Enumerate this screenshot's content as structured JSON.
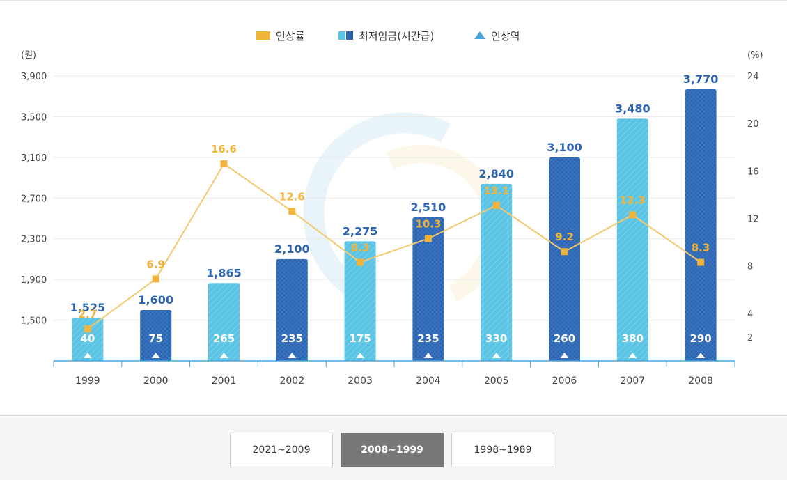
{
  "chart_data": {
    "type": "bar",
    "title": "",
    "legend": [
      {
        "name": "인상률",
        "marker": "square",
        "color": "#f0b43c"
      },
      {
        "name": "최저임금(시간급)",
        "marker": "double-square",
        "color": "#5bc4e4"
      },
      {
        "name": "인상역",
        "marker": "triangle",
        "color": "#2f8fd0"
      }
    ],
    "legend_position": "top-center",
    "categories": [
      "1999",
      "2000",
      "2001",
      "2002",
      "2003",
      "2004",
      "2005",
      "2006",
      "2007",
      "2008"
    ],
    "series": [
      {
        "name": "최저임금(시간급)",
        "axis": "left",
        "values": [
          1525,
          1600,
          1865,
          2100,
          2275,
          2510,
          2840,
          3100,
          3480,
          3770
        ],
        "labels": [
          "1,525",
          "1,600",
          "1,865",
          "2,100",
          "2,275",
          "2,510",
          "2,840",
          "3,100",
          "3,480",
          "3,770"
        ],
        "colors": [
          "#5bc4e4",
          "#2d64b0"
        ]
      },
      {
        "name": "인상률",
        "type": "line",
        "axis": "right",
        "values": [
          2.7,
          6.9,
          16.6,
          12.6,
          8.3,
          10.3,
          13.1,
          9.2,
          12.3,
          8.3
        ],
        "labels": [
          "2.7",
          "6.9",
          "16.6",
          "12.6",
          "8.3",
          "10.3",
          "13.1",
          "9.2",
          "12.3",
          "8.3"
        ],
        "color": "#f0b43c"
      },
      {
        "name": "인상역",
        "values": [
          40,
          75,
          265,
          235,
          175,
          235,
          330,
          260,
          380,
          290
        ],
        "labels": [
          "40",
          "75",
          "265",
          "235",
          "175",
          "235",
          "330",
          "260",
          "380",
          "290"
        ]
      }
    ],
    "y_left": {
      "unit_label": "(원)",
      "min": 1100,
      "max": 3900,
      "ticks": [
        1500,
        1900,
        2300,
        2700,
        3100,
        3500,
        3900
      ],
      "tick_labels": [
        "1,500",
        "1,900",
        "2,300",
        "2,700",
        "3,100",
        "3,500",
        "3,900"
      ]
    },
    "y_right": {
      "unit_label": "(%)",
      "min": 0,
      "max": 24,
      "ticks": [
        2,
        4,
        8,
        12,
        16,
        20,
        24
      ],
      "tick_labels": [
        "2",
        "4",
        "8",
        "12",
        "16",
        "20",
        "24"
      ]
    },
    "grid": true,
    "xlabel": "",
    "ylabel": ""
  },
  "range_buttons": [
    {
      "label": "2021~2009",
      "active": false
    },
    {
      "label": "2008~1999",
      "active": true
    },
    {
      "label": "1998~1989",
      "active": false
    }
  ],
  "colors": {
    "bar_light": "#5bc4e4",
    "bar_dark": "#2d64b0",
    "line": "#f0b43c",
    "line_stroke": "#f5c86e",
    "value_label": "#2d64b0",
    "rate_label": "#f0b43c",
    "axis": "#4aa3d8",
    "grid": "#e8e8e8",
    "tick_text": "#444444"
  }
}
